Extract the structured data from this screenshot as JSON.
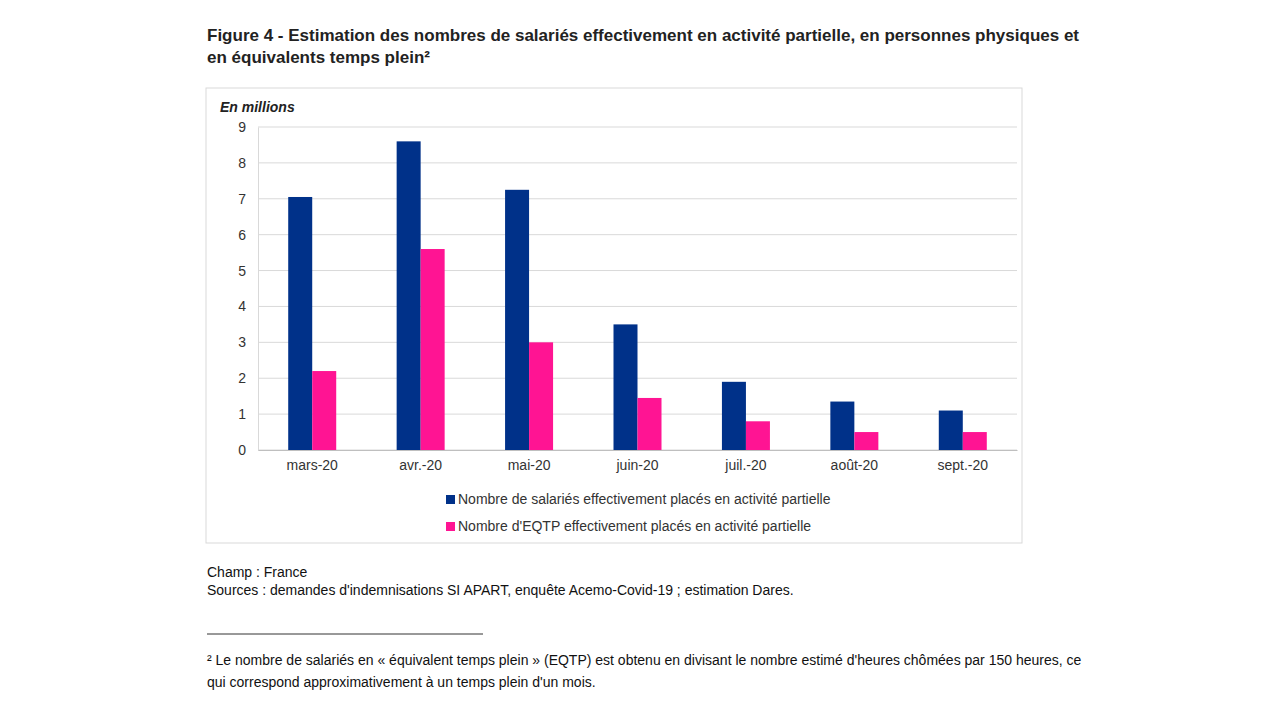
{
  "chart_data": {
    "type": "bar",
    "title": "Figure 4 - Estimation des nombres de salariés effectivement en activité partielle, en personnes physiques et en équivalents temps plein²",
    "y_label": "En millions",
    "categories": [
      "mars-20",
      "avr.-20",
      "mai-20",
      "juin-20",
      "juil.-20",
      "août-20",
      "sept.-20"
    ],
    "series": [
      {
        "name": "Nombre de salariés effectivement placés en activité partielle",
        "color": "#003189",
        "values": [
          7.05,
          8.6,
          7.25,
          3.5,
          1.9,
          1.35,
          1.1
        ]
      },
      {
        "name": "Nombre d'EQTP effectivement placés en activité partielle",
        "color": "#ff1493",
        "values": [
          2.2,
          5.6,
          3.0,
          1.45,
          0.8,
          0.5,
          0.5
        ]
      }
    ],
    "ylim": [
      0,
      9
    ],
    "yticks": [
      0,
      1,
      2,
      3,
      4,
      5,
      6,
      7,
      8,
      9
    ],
    "grid": true,
    "legend": "bottom",
    "scope": "Champ : France",
    "source": "Sources : demandes d'indemnisations SI APART, enquête Acemo-Covid-19 ; estimation Dares.",
    "footnote": "² Le nombre de salariés en « équivalent temps plein » (EQTP) est obtenu en divisant le nombre estimé d'heures chômées par 150 heures, ce qui correspond approximativement à un temps plein d'un mois."
  }
}
